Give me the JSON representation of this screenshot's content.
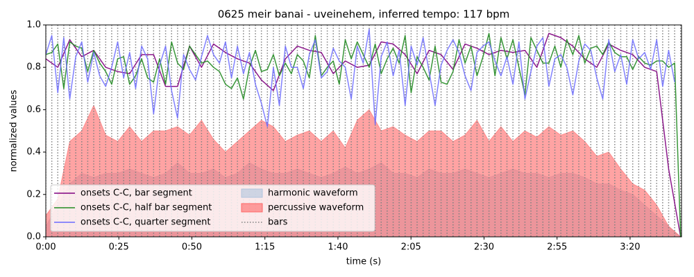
{
  "chart_data": {
    "type": "line",
    "title": "0625 meir banai - uveinehem, inferred tempo: 117 bpm",
    "x_label": "time (s)",
    "y_label": "normalized values",
    "xlim": [
      0,
      217.6
    ],
    "ylim": [
      0,
      1
    ],
    "xticks": [
      {
        "value": 0,
        "label": "0:00"
      },
      {
        "value": 25,
        "label": "0:25"
      },
      {
        "value": 50,
        "label": "0:50"
      },
      {
        "value": 75,
        "label": "1:15"
      },
      {
        "value": 100,
        "label": "1:40"
      },
      {
        "value": 125,
        "label": "2:05"
      },
      {
        "value": 150,
        "label": "2:30"
      },
      {
        "value": 175,
        "label": "2:55"
      },
      {
        "value": 200,
        "label": "3:20"
      }
    ],
    "yticks": [
      {
        "value": 0,
        "label": "0.0"
      },
      {
        "value": 0.2,
        "label": "0.2"
      },
      {
        "value": 0.4,
        "label": "0.4"
      },
      {
        "value": 0.6,
        "label": "0.6"
      },
      {
        "value": 0.8,
        "label": "0.8"
      },
      {
        "value": 1,
        "label": "1.0"
      }
    ],
    "legend_position": "lower left",
    "areas": [
      {
        "name": "harmonic waveform",
        "color": "#b0c4de",
        "x": [
          0,
          4.1,
          8.2,
          12.3,
          16.4,
          20.5,
          24.6,
          28.7,
          32.8,
          36.9,
          41,
          45.1,
          49.2,
          53.3,
          57.4,
          61.5,
          65.6,
          69.7,
          73.8,
          77.9,
          82,
          86.1,
          90.2,
          94.3,
          98.4,
          102.5,
          106.6,
          110.7,
          114.8,
          118.9,
          123,
          127.1,
          131.2,
          135.3,
          139.4,
          143.5,
          147.6,
          151.7,
          155.8,
          159.9,
          164,
          168.1,
          172.2,
          176.3,
          180.4,
          184.5,
          188.6,
          192.7,
          196.8,
          200.9,
          205,
          209.1,
          213.2,
          217.3
        ],
        "values": [
          0.05,
          0.15,
          0.25,
          0.3,
          0.28,
          0.3,
          0.3,
          0.32,
          0.3,
          0.28,
          0.3,
          0.35,
          0.3,
          0.3,
          0.32,
          0.28,
          0.3,
          0.35,
          0.32,
          0.3,
          0.3,
          0.32,
          0.3,
          0.28,
          0.3,
          0.33,
          0.3,
          0.32,
          0.35,
          0.3,
          0.3,
          0.28,
          0.32,
          0.3,
          0.3,
          0.32,
          0.3,
          0.28,
          0.3,
          0.32,
          0.3,
          0.3,
          0.28,
          0.3,
          0.3,
          0.28,
          0.25,
          0.25,
          0.22,
          0.2,
          0.15,
          0.1,
          0.05,
          0.0
        ]
      },
      {
        "name": "percussive waveform",
        "color": "#ff6666",
        "x": [
          0,
          4.1,
          8.2,
          12.3,
          16.4,
          20.5,
          24.6,
          28.7,
          32.8,
          36.9,
          41,
          45.1,
          49.2,
          53.3,
          57.4,
          61.5,
          65.6,
          69.7,
          73.8,
          77.9,
          82,
          86.1,
          90.2,
          94.3,
          98.4,
          102.5,
          106.6,
          110.7,
          114.8,
          118.9,
          123,
          127.1,
          131.2,
          135.3,
          139.4,
          143.5,
          147.6,
          151.7,
          155.8,
          159.9,
          164,
          168.1,
          172.2,
          176.3,
          180.4,
          184.5,
          188.6,
          192.7,
          196.8,
          200.9,
          205,
          209.1,
          213.2,
          217.3
        ],
        "values": [
          0.1,
          0.18,
          0.45,
          0.5,
          0.62,
          0.48,
          0.45,
          0.52,
          0.45,
          0.5,
          0.5,
          0.52,
          0.48,
          0.55,
          0.46,
          0.4,
          0.45,
          0.5,
          0.55,
          0.52,
          0.45,
          0.48,
          0.5,
          0.45,
          0.5,
          0.42,
          0.55,
          0.6,
          0.5,
          0.52,
          0.48,
          0.45,
          0.5,
          0.5,
          0.45,
          0.48,
          0.55,
          0.45,
          0.52,
          0.45,
          0.5,
          0.47,
          0.52,
          0.48,
          0.5,
          0.45,
          0.38,
          0.4,
          0.32,
          0.25,
          0.22,
          0.15,
          0.05,
          0.0
        ]
      }
    ],
    "bars": {
      "name": "bars",
      "color": "#808080",
      "x": [
        0,
        2.05,
        4.1,
        6.15,
        8.2,
        10.25,
        12.3,
        14.35,
        16.4,
        18.45,
        20.5,
        22.55,
        24.6,
        26.65,
        28.7,
        30.75,
        32.8,
        34.85,
        36.9,
        38.95,
        41,
        43.05,
        45.1,
        47.15,
        49.2,
        51.25,
        53.3,
        55.35,
        57.4,
        59.45,
        61.5,
        63.55,
        65.6,
        67.65,
        69.7,
        71.75,
        73.8,
        75.85,
        77.9,
        79.95,
        82,
        84.05,
        86.1,
        88.15,
        90.2,
        92.25,
        94.3,
        96.35,
        98.4,
        100.45,
        102.5,
        104.55,
        106.6,
        108.65,
        110.7,
        112.75,
        114.8,
        116.85,
        118.9,
        120.95,
        123,
        125.05,
        127.1,
        129.15,
        131.2,
        133.25,
        135.3,
        137.35,
        139.4,
        141.45,
        143.5,
        145.55,
        147.6,
        149.65,
        151.7,
        153.75,
        155.8,
        157.85,
        159.9,
        161.95,
        164,
        166.05,
        168.1,
        170.15,
        172.2,
        174.25,
        176.3,
        178.35,
        180.4,
        182.45,
        184.5,
        186.55,
        188.6,
        190.65,
        192.7,
        194.75,
        196.8,
        198.85,
        200.9,
        202.95,
        205,
        207.05,
        209.1,
        211.15,
        213.2,
        215.25,
        217.3
      ]
    },
    "series": [
      {
        "name": "onsets C-C, bar segment",
        "color": "#800080",
        "x": [
          0,
          4.1,
          8.2,
          12.3,
          16.4,
          20.5,
          24.6,
          28.7,
          32.8,
          36.9,
          41,
          45.1,
          49.2,
          53.3,
          57.4,
          61.5,
          65.6,
          69.7,
          73.8,
          77.9,
          82,
          86.1,
          90.2,
          94.3,
          98.4,
          102.5,
          106.6,
          110.7,
          114.8,
          118.9,
          123,
          127.1,
          131.2,
          135.3,
          139.4,
          143.5,
          147.6,
          151.7,
          155.8,
          159.9,
          164,
          168.1,
          172.2,
          176.3,
          180.4,
          184.5,
          188.6,
          192.7,
          196.8,
          200.9,
          205,
          209.1,
          213.2,
          217.3
        ],
        "values": [
          0.84,
          0.8,
          0.93,
          0.85,
          0.88,
          0.8,
          0.78,
          0.77,
          0.86,
          0.86,
          0.71,
          0.71,
          0.9,
          0.8,
          0.91,
          0.87,
          0.84,
          0.82,
          0.74,
          0.69,
          0.84,
          0.9,
          0.88,
          0.87,
          0.77,
          0.83,
          0.8,
          0.81,
          0.92,
          0.91,
          0.86,
          0.77,
          0.88,
          0.86,
          0.79,
          0.91,
          0.89,
          0.86,
          0.88,
          0.87,
          0.88,
          0.8,
          0.96,
          0.94,
          0.9,
          0.84,
          0.8,
          0.91,
          0.88,
          0.86,
          0.8,
          0.78,
          0.32,
          0.0
        ]
      },
      {
        "name": "onsets C-C, half bar segment",
        "color": "#228b22",
        "x": [
          0,
          2.05,
          4.1,
          6.15,
          8.2,
          10.25,
          12.3,
          14.35,
          16.4,
          18.45,
          20.5,
          22.55,
          24.6,
          26.65,
          28.7,
          30.75,
          32.8,
          34.85,
          36.9,
          38.95,
          41,
          43.05,
          45.1,
          47.15,
          49.2,
          51.25,
          53.3,
          55.35,
          57.4,
          59.45,
          61.5,
          63.55,
          65.6,
          67.65,
          69.7,
          71.75,
          73.8,
          75.85,
          77.9,
          79.95,
          82,
          84.05,
          86.1,
          88.15,
          90.2,
          92.25,
          94.3,
          96.35,
          98.4,
          100.45,
          102.5,
          104.55,
          106.6,
          108.65,
          110.7,
          112.75,
          114.8,
          116.85,
          118.9,
          120.95,
          123,
          125.05,
          127.1,
          129.15,
          131.2,
          133.25,
          135.3,
          137.35,
          139.4,
          141.45,
          143.5,
          145.55,
          147.6,
          149.65,
          151.7,
          153.75,
          155.8,
          157.85,
          159.9,
          161.95,
          164,
          166.05,
          168.1,
          170.15,
          172.2,
          174.25,
          176.3,
          178.35,
          180.4,
          182.45,
          184.5,
          186.55,
          188.6,
          190.65,
          192.7,
          194.75,
          196.8,
          198.85,
          200.9,
          202.95,
          205,
          207.05,
          209.1,
          211.15,
          213.2,
          215.25,
          217.3
        ],
        "values": [
          0.86,
          0.87,
          0.91,
          0.7,
          0.92,
          0.9,
          0.89,
          0.78,
          0.88,
          0.82,
          0.78,
          0.72,
          0.84,
          0.85,
          0.72,
          0.76,
          0.84,
          0.75,
          0.73,
          0.84,
          0.72,
          0.92,
          0.82,
          0.79,
          0.9,
          0.86,
          0.82,
          0.83,
          0.8,
          0.78,
          0.72,
          0.7,
          0.75,
          0.65,
          0.8,
          0.88,
          0.78,
          0.79,
          0.86,
          0.76,
          0.82,
          0.77,
          0.86,
          0.83,
          0.75,
          0.95,
          0.76,
          0.8,
          0.83,
          0.72,
          0.93,
          0.84,
          0.92,
          0.86,
          0.8,
          0.91,
          0.77,
          0.84,
          0.89,
          0.82,
          0.95,
          0.68,
          0.85,
          0.8,
          0.74,
          0.9,
          0.73,
          0.72,
          0.78,
          0.93,
          0.82,
          0.9,
          0.76,
          0.85,
          0.96,
          0.76,
          0.94,
          0.84,
          0.93,
          0.8,
          0.67,
          0.94,
          0.88,
          0.82,
          0.82,
          0.9,
          0.8,
          0.93,
          0.86,
          0.95,
          0.82,
          0.89,
          0.9,
          0.86,
          0.92,
          0.87,
          0.85,
          0.85,
          0.79,
          0.85,
          0.82,
          0.81,
          0.83,
          0.83,
          0.8,
          0.82,
          0.0
        ]
      },
      {
        "name": "onsets C-C, quarter segment",
        "color": "#6b6bff",
        "x": [
          0,
          2.05,
          4.1,
          6.15,
          8.2,
          10.25,
          12.3,
          14.35,
          16.4,
          18.45,
          20.5,
          22.55,
          24.6,
          26.65,
          28.7,
          30.75,
          32.8,
          34.85,
          36.9,
          38.95,
          41,
          43.05,
          45.1,
          47.15,
          49.2,
          51.25,
          53.3,
          55.35,
          57.4,
          59.45,
          61.5,
          63.55,
          65.6,
          67.65,
          69.7,
          71.75,
          73.8,
          75.85,
          77.9,
          79.95,
          82,
          84.05,
          86.1,
          88.15,
          90.2,
          92.25,
          94.3,
          96.35,
          98.4,
          100.45,
          102.5,
          104.55,
          106.6,
          108.65,
          110.7,
          112.75,
          114.8,
          116.85,
          118.9,
          120.95,
          123,
          125.05,
          127.1,
          129.15,
          131.2,
          133.25,
          135.3,
          137.35,
          139.4,
          141.45,
          143.5,
          145.55,
          147.6,
          149.65,
          151.7,
          153.75,
          155.8,
          157.85,
          159.9,
          161.95,
          164,
          166.05,
          168.1,
          170.15,
          172.2,
          174.25,
          176.3,
          178.35,
          180.4,
          182.45,
          184.5,
          186.55,
          188.6,
          190.65,
          192.7,
          194.75,
          196.8,
          198.85,
          200.9,
          202.95,
          205,
          207.05,
          209.1,
          211.15,
          213.2,
          215.25
        ],
        "values": [
          0.86,
          0.95,
          0.68,
          0.94,
          0.65,
          0.85,
          0.92,
          0.73,
          0.87,
          0.76,
          0.71,
          0.8,
          0.92,
          0.75,
          0.87,
          0.7,
          0.9,
          0.84,
          0.58,
          0.81,
          0.9,
          0.69,
          0.56,
          0.86,
          0.79,
          0.74,
          0.85,
          0.95,
          0.86,
          0.82,
          0.92,
          0.75,
          0.9,
          0.77,
          0.87,
          0.72,
          0.63,
          0.52,
          0.8,
          0.62,
          0.9,
          0.8,
          0.8,
          0.7,
          0.86,
          0.93,
          0.75,
          0.78,
          0.89,
          0.83,
          0.8,
          0.65,
          0.9,
          0.82,
          0.98,
          0.53,
          0.85,
          0.92,
          0.76,
          0.88,
          0.62,
          0.9,
          0.81,
          0.94,
          0.78,
          0.62,
          0.81,
          0.88,
          0.93,
          0.87,
          0.76,
          0.69,
          0.87,
          0.9,
          0.92,
          0.83,
          0.76,
          0.85,
          0.72,
          0.92,
          0.65,
          0.78,
          0.9,
          0.94,
          0.71,
          0.84,
          0.86,
          0.8,
          0.67,
          0.83,
          0.91,
          0.88,
          0.75,
          0.65,
          0.93,
          0.78,
          0.86,
          0.72,
          0.93,
          0.84,
          0.87,
          0.79,
          0.93,
          0.71,
          0.88,
          0.73
        ]
      }
    ]
  }
}
